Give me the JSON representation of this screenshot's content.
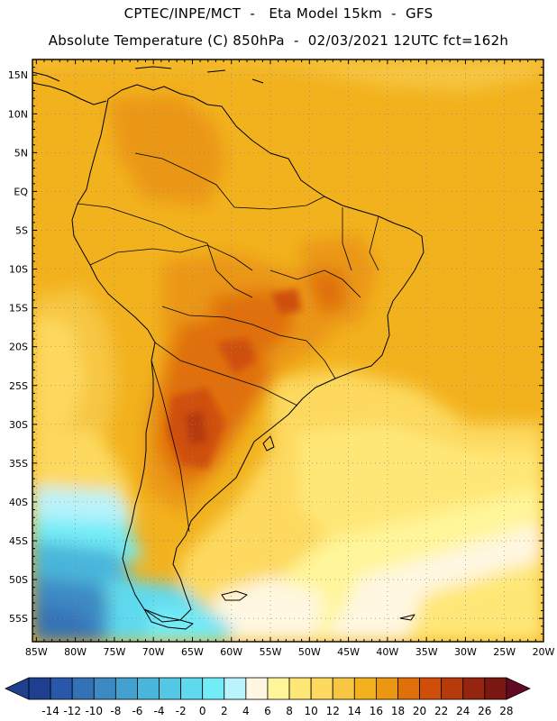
{
  "header": {
    "line1": "CPTEC/INPE/MCT  -   Eta Model 15km  -  GFS",
    "line2": "Absolute Temperature (C) 850hPa  -  02/03/2021 12UTC fct=162h"
  },
  "map": {
    "lat_labels": [
      "15N",
      "10N",
      "5N",
      "EQ",
      "5S",
      "10S",
      "15S",
      "20S",
      "25S",
      "30S",
      "35S",
      "40S",
      "45S",
      "50S",
      "55S"
    ],
    "lat_values": [
      15,
      10,
      5,
      0,
      -5,
      -10,
      -15,
      -20,
      -25,
      -30,
      -35,
      -40,
      -45,
      -50,
      -55
    ],
    "lon_labels": [
      "85W",
      "80W",
      "75W",
      "70W",
      "65W",
      "60W",
      "55W",
      "50W",
      "45W",
      "40W",
      "35W",
      "30W",
      "25W",
      "20W"
    ],
    "lon_values": [
      -85,
      -80,
      -75,
      -70,
      -65,
      -60,
      -55,
      -50,
      -45,
      -40,
      -35,
      -30,
      -25,
      -20
    ],
    "lon_range": [
      -85.5,
      -20
    ],
    "lat_range": [
      -58,
      17
    ]
  },
  "colorbar": {
    "labels": [
      "-14",
      "-12",
      "-10",
      "-8",
      "-6",
      "-4",
      "-2",
      "0",
      "2",
      "4",
      "6",
      "8",
      "10",
      "12",
      "14",
      "16",
      "18",
      "20",
      "22",
      "24",
      "26",
      "28"
    ],
    "colors": [
      "#1f3f8f",
      "#2a58a8",
      "#3472b6",
      "#3d89c4",
      "#43a0cf",
      "#49b5da",
      "#52c8e4",
      "#5ed9ee",
      "#72ecf7",
      "#b9f3fb",
      "#fff7e1",
      "#fff59a",
      "#ffe777",
      "#fdd95f",
      "#f7c642",
      "#f2b21e",
      "#eb9712",
      "#e0700a",
      "#cf4f0a",
      "#b63a0a",
      "#952410",
      "#7c1812",
      "#600b23"
    ]
  },
  "colors": {
    "frame": "#000000",
    "coast": "#000000",
    "grid": "#888888"
  }
}
